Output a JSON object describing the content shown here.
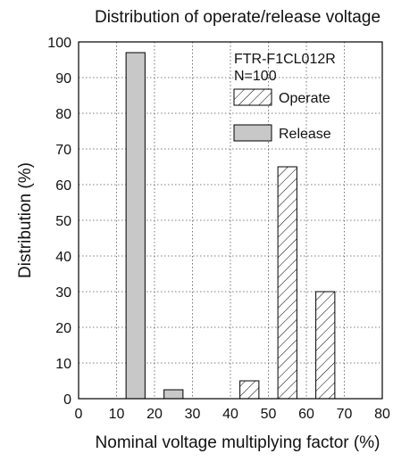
{
  "chart_data": {
    "type": "bar",
    "title": "Distribution of operate/release voltage",
    "xlabel": "Nominal voltage multiplying factor (%)",
    "ylabel": "Distribution (%)",
    "xlim": [
      0,
      80
    ],
    "ylim": [
      0,
      100
    ],
    "x_ticks": [
      0,
      10,
      20,
      30,
      40,
      50,
      60,
      70,
      80
    ],
    "y_ticks": [
      0,
      10,
      20,
      30,
      40,
      50,
      60,
      70,
      80,
      90,
      100
    ],
    "grid": true,
    "annotations": [
      "FTR-F1CL012R",
      "N=100"
    ],
    "legend_position": "top-right",
    "bar_width": 5,
    "series": [
      {
        "name": "Operate",
        "pattern": "hatched",
        "points": [
          {
            "x": 45,
            "y": 5
          },
          {
            "x": 55,
            "y": 65
          },
          {
            "x": 65,
            "y": 30
          }
        ]
      },
      {
        "name": "Release",
        "pattern": "solid",
        "color": "#c8c8c8",
        "points": [
          {
            "x": 15,
            "y": 97
          },
          {
            "x": 25,
            "y": 2.5
          }
        ]
      }
    ]
  }
}
